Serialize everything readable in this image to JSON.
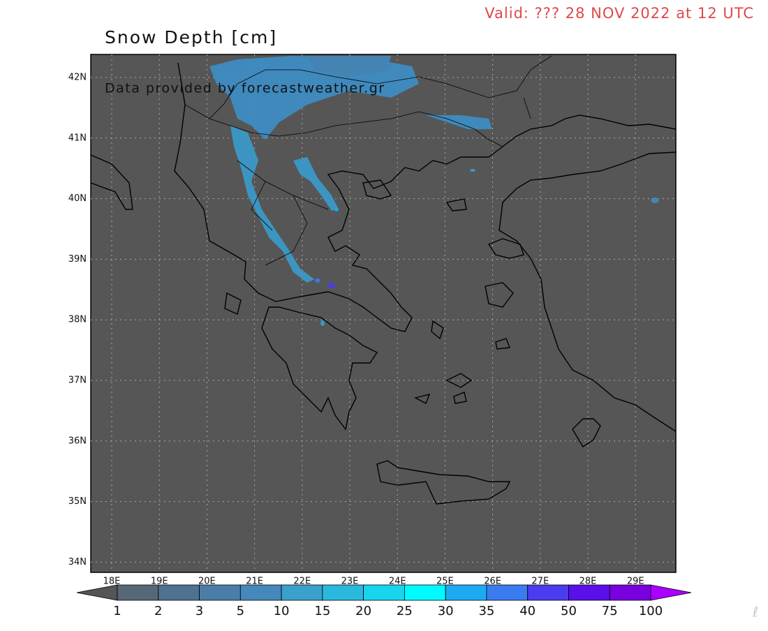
{
  "header": {
    "valid": "Valid: ??? 28 NOV 2022 at 12 UTC"
  },
  "map": {
    "title": "Snow Depth  [cm]",
    "credit": "Data provided by forecastweather.gr",
    "lat_labels": [
      "42N",
      "41N",
      "40N",
      "39N",
      "38N",
      "37N",
      "36N",
      "35N",
      "34N"
    ],
    "lon_labels": [
      "18E",
      "19E",
      "20E",
      "21E",
      "22E",
      "23E",
      "24E",
      "25E",
      "26E",
      "27E",
      "28E",
      "29E"
    ]
  },
  "colorbar": {
    "labels": [
      1,
      2,
      3,
      5,
      10,
      15,
      20,
      25,
      30,
      35,
      40,
      50,
      75,
      100
    ],
    "colors": [
      "#566878",
      "#4e7290",
      "#4a7ea8",
      "#4488bc",
      "#3aa0cc",
      "#2ab8dc",
      "#18d4ec",
      "#00faff",
      "#1eaaf2",
      "#3a7cf0",
      "#4a3cf0",
      "#5a10e8",
      "#7a00e0"
    ],
    "under_color": "#555555",
    "over_color": "#aa00ff"
  }
}
